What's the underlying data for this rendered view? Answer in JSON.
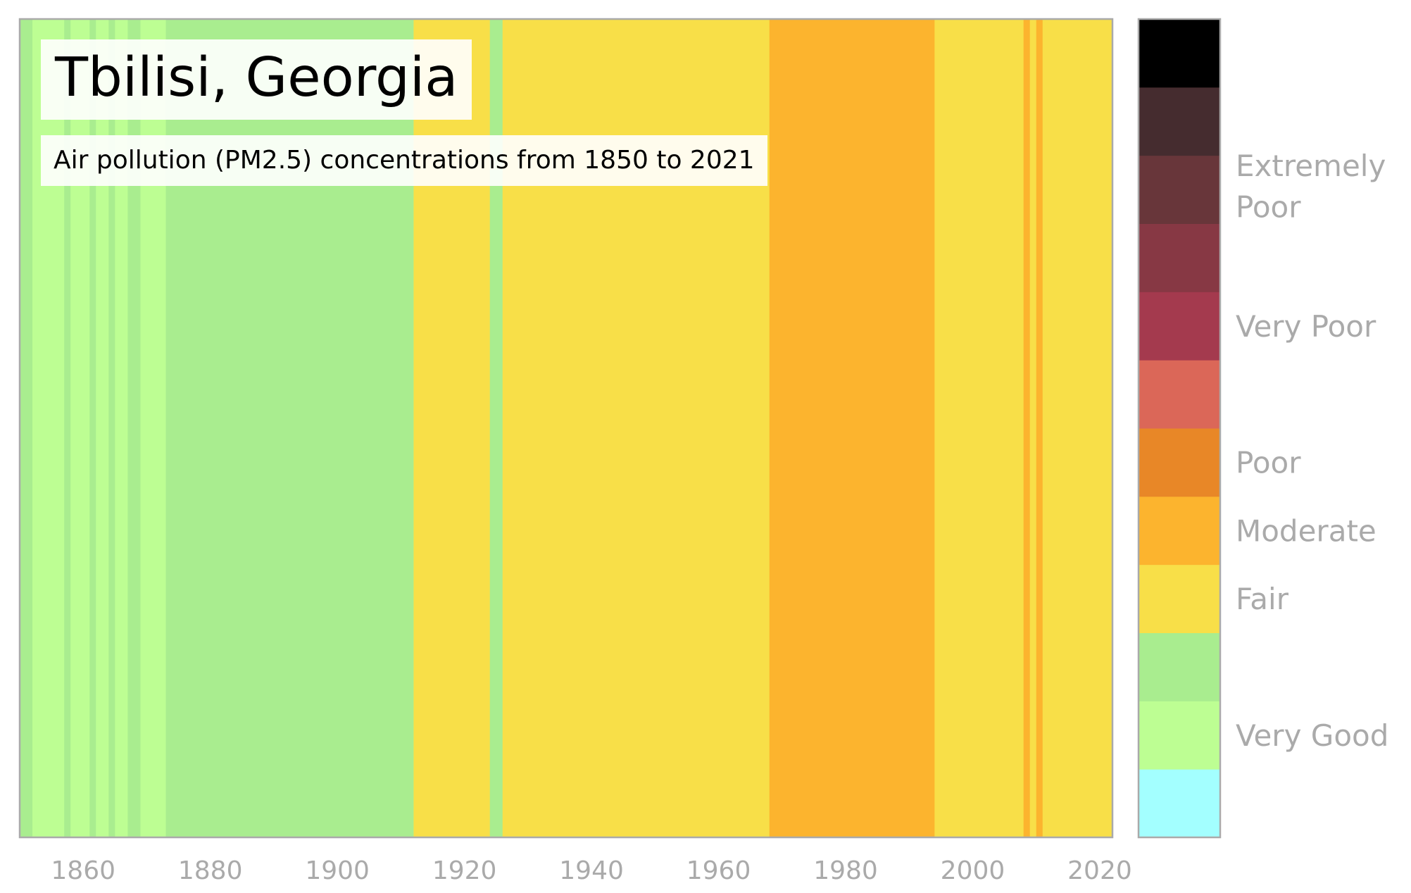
{
  "chart_data": {
    "type": "heatmap",
    "title": "Tbilisi, Georgia",
    "subtitle": "Air pollution (PM2.5) concentrations from 1850 to 2021",
    "x_range": [
      1850,
      2022
    ],
    "x_ticks": [
      "1860",
      "1880",
      "1900",
      "1920",
      "1940",
      "1960",
      "1980",
      "2000",
      "2020"
    ],
    "categories": [
      {
        "level": 0,
        "color": "#a3ffff"
      },
      {
        "level": 1,
        "color": "#bdfe93"
      },
      {
        "level": 2,
        "color": "#a9ed8f"
      },
      {
        "level": 3,
        "color": "#f8df48"
      },
      {
        "level": 4,
        "color": "#fcb42e"
      },
      {
        "level": 5,
        "color": "#e88727"
      },
      {
        "level": 6,
        "color": "#db6758"
      },
      {
        "level": 7,
        "color": "#a43a4e"
      },
      {
        "level": 8,
        "color": "#873844"
      },
      {
        "level": 9,
        "color": "#68363a"
      },
      {
        "level": 10,
        "color": "#452c2f"
      },
      {
        "level": 11,
        "color": "#000000"
      }
    ],
    "colorbar_labels": [
      {
        "text": "Very Good",
        "level": 1
      },
      {
        "text": "Fair",
        "level": 3
      },
      {
        "text": "Moderate",
        "level": 4
      },
      {
        "text": "Poor",
        "level": 5
      },
      {
        "text": "Very Poor",
        "level": 7
      },
      {
        "text": "Extremely",
        "level": 9.35
      },
      {
        "text": "Poor",
        "level": 8.75
      }
    ],
    "segments": [
      {
        "start": 1850,
        "end": 1852,
        "level": 2
      },
      {
        "start": 1852,
        "end": 1857,
        "level": 1
      },
      {
        "start": 1857,
        "end": 1858,
        "level": 2
      },
      {
        "start": 1858,
        "end": 1861,
        "level": 1
      },
      {
        "start": 1861,
        "end": 1862,
        "level": 2
      },
      {
        "start": 1862,
        "end": 1864,
        "level": 1
      },
      {
        "start": 1864,
        "end": 1865,
        "level": 2
      },
      {
        "start": 1865,
        "end": 1867,
        "level": 1
      },
      {
        "start": 1867,
        "end": 1869,
        "level": 2
      },
      {
        "start": 1869,
        "end": 1873,
        "level": 1
      },
      {
        "start": 1873,
        "end": 1912,
        "level": 2
      },
      {
        "start": 1912,
        "end": 1924,
        "level": 3
      },
      {
        "start": 1924,
        "end": 1926,
        "level": 2
      },
      {
        "start": 1926,
        "end": 1968,
        "level": 3
      },
      {
        "start": 1968,
        "end": 1994,
        "level": 4
      },
      {
        "start": 1994,
        "end": 2008,
        "level": 3
      },
      {
        "start": 2008,
        "end": 2009,
        "level": 4
      },
      {
        "start": 2009,
        "end": 2010,
        "level": 3
      },
      {
        "start": 2010,
        "end": 2011,
        "level": 4
      },
      {
        "start": 2011,
        "end": 2022,
        "level": 3
      }
    ]
  }
}
